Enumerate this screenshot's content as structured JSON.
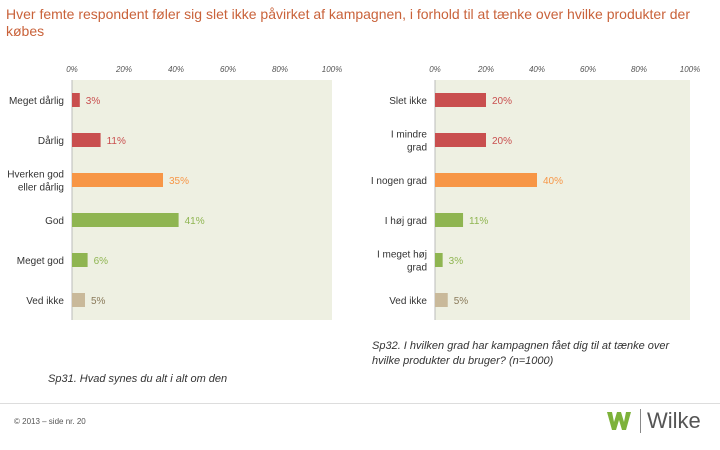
{
  "page": {
    "title": "Hver femte respondent føler sig slet ikke påvirket af kampagnen, i forhold til at tænke over hvilke produkter der købes",
    "footer": "© 2013 – side nr. 20",
    "logo_text": "Wilke",
    "logo_mark": "W",
    "brand_color": "#7db23a"
  },
  "chart_data": [
    {
      "type": "bar",
      "orientation": "horizontal",
      "xlim": [
        0,
        100
      ],
      "x_ticks": [
        "0%",
        "20%",
        "40%",
        "60%",
        "80%",
        "100%"
      ],
      "categories": [
        "Meget dårlig",
        "Dårlig",
        "Hverken god eller dårlig",
        "God",
        "Meget god",
        "Ved ikke"
      ],
      "values": [
        3,
        11,
        35,
        41,
        6,
        5
      ],
      "value_labels": [
        "3%",
        "11%",
        "35%",
        "41%",
        "6%",
        "5%"
      ],
      "colors": [
        "#c94f4f",
        "#c94f4f",
        "#f79646",
        "#8fb551",
        "#8fb551",
        "#c9b99a"
      ],
      "label_colors": [
        "#c94f4f",
        "#c94f4f",
        "#f79646",
        "#8fb551",
        "#8fb551",
        "#8a7a5a"
      ],
      "caption": "Sp31. Hvad synes du alt i alt om den"
    },
    {
      "type": "bar",
      "orientation": "horizontal",
      "xlim": [
        0,
        100
      ],
      "x_ticks": [
        "0%",
        "20%",
        "40%",
        "60%",
        "80%",
        "100%"
      ],
      "categories": [
        "Slet ikke",
        "I mindre grad",
        "I nogen grad",
        "I høj grad",
        "I meget høj grad",
        "Ved ikke"
      ],
      "values": [
        20,
        20,
        40,
        11,
        3,
        5
      ],
      "value_labels": [
        "20%",
        "20%",
        "40%",
        "11%",
        "3%",
        "5%"
      ],
      "colors": [
        "#c94f4f",
        "#c94f4f",
        "#f79646",
        "#8fb551",
        "#8fb551",
        "#c9b99a"
      ],
      "label_colors": [
        "#c94f4f",
        "#c94f4f",
        "#f79646",
        "#8fb551",
        "#8fb551",
        "#8a7a5a"
      ],
      "caption": "Sp32. I hvilken grad har kampagnen fået dig til at tænke over hvilke produkter du bruger? (n=1000)"
    }
  ]
}
